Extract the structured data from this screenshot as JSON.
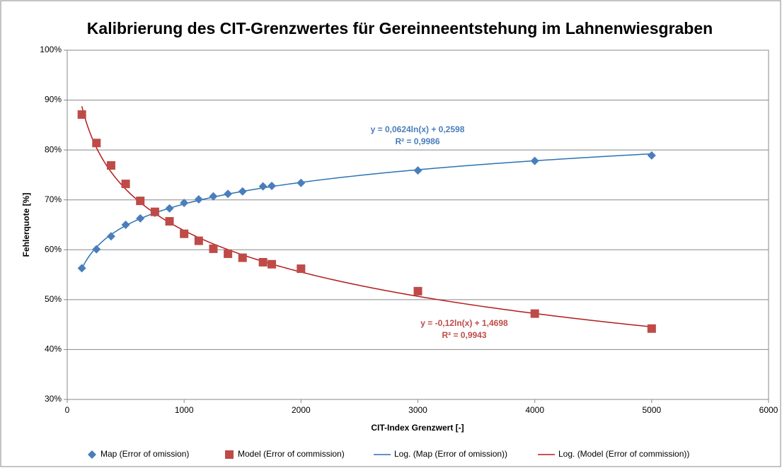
{
  "chart_data": {
    "type": "scatter",
    "title": "Kalibrierung des CIT-Grenzwertes für Gereinneentstehung im Lahnenwiesgraben",
    "x_label": "CIT-Index Grenzwert [-]",
    "y_label": "Fehlerquote [%]",
    "xlim": [
      0,
      6000
    ],
    "xticks": [
      0,
      1000,
      2000,
      3000,
      4000,
      5000,
      6000
    ],
    "ylim": [
      30,
      100
    ],
    "yticks": [
      {
        "value": 30,
        "label": "30%"
      },
      {
        "value": 40,
        "label": "40%"
      },
      {
        "value": 50,
        "label": "50%"
      },
      {
        "value": 60,
        "label": "60%"
      },
      {
        "value": 70,
        "label": "70%"
      },
      {
        "value": 80,
        "label": "80%"
      },
      {
        "value": 90,
        "label": "90%"
      },
      {
        "value": 100,
        "label": "100%"
      }
    ],
    "grid": true,
    "legend": "bottom",
    "series": [
      {
        "name": "Map (Error of omission)",
        "color": "#4a7ebb",
        "marker": "diamond",
        "x": [
          125,
          250,
          375,
          500,
          625,
          750,
          875,
          1000,
          1125,
          1250,
          1375,
          1500,
          1675,
          1750,
          2000,
          3000,
          4000,
          5000
        ],
        "values": [
          56.3,
          60.1,
          62.7,
          65.0,
          66.3,
          67.4,
          68.3,
          69.4,
          70.1,
          70.7,
          71.2,
          71.7,
          72.7,
          72.8,
          73.4,
          75.9,
          77.8,
          78.9
        ],
        "trendline": {
          "name": "Log. (Map (Error of omission))",
          "color": "#2a72b5",
          "equation": "y = 0,0624ln(x) + 0,2598",
          "r2": "R² = 0,9986"
        }
      },
      {
        "name": "Model (Error of commission)",
        "color": "#be4b48",
        "marker": "square",
        "x": [
          125,
          250,
          375,
          500,
          625,
          750,
          875,
          1000,
          1125,
          1250,
          1375,
          1500,
          1675,
          1750,
          2000,
          3000,
          4000,
          5000
        ],
        "values": [
          87.1,
          81.4,
          76.9,
          73.2,
          69.8,
          67.6,
          65.7,
          63.2,
          61.8,
          60.2,
          59.2,
          58.4,
          57.5,
          57.1,
          56.2,
          51.7,
          47.2,
          44.2
        ],
        "trendline": {
          "name": "Log. (Model (Error of commission))",
          "color": "#b31b1b",
          "equation": "y = -0,12ln(x) + 1,4698",
          "r2": "R² = 0,9943"
        }
      }
    ]
  }
}
